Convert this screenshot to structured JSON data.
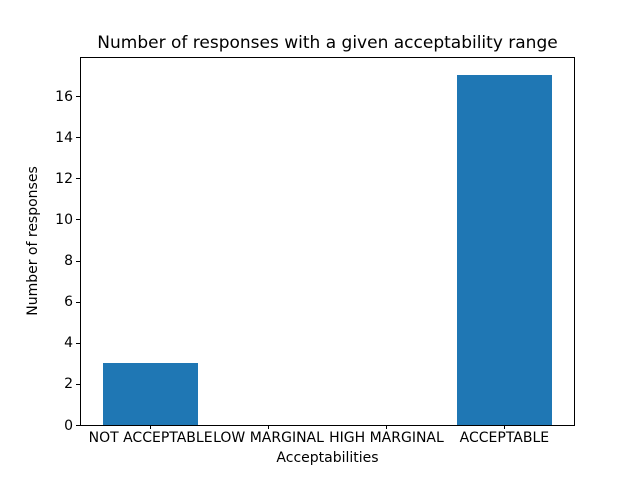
{
  "figure": {
    "background": "#ffffff"
  },
  "chart_data": {
    "type": "bar",
    "title": "Number of responses with a given acceptability range",
    "xlabel": "Acceptabilities",
    "ylabel": "Number of responses",
    "categories": [
      "NOT ACCEPTABLE",
      "LOW MARGINAL",
      "HIGH MARGINAL",
      "ACCEPTABLE"
    ],
    "values": [
      3,
      0,
      0,
      17
    ],
    "yticks": [
      0,
      2,
      4,
      6,
      8,
      10,
      12,
      14,
      16
    ],
    "ylim": [
      0,
      17.85
    ],
    "xlim": [
      -0.59,
      3.59
    ],
    "bar_width": 0.8,
    "bar_color": "#1f77b4",
    "axis_color": "#000000",
    "grid": false,
    "legend_position": "none"
  }
}
